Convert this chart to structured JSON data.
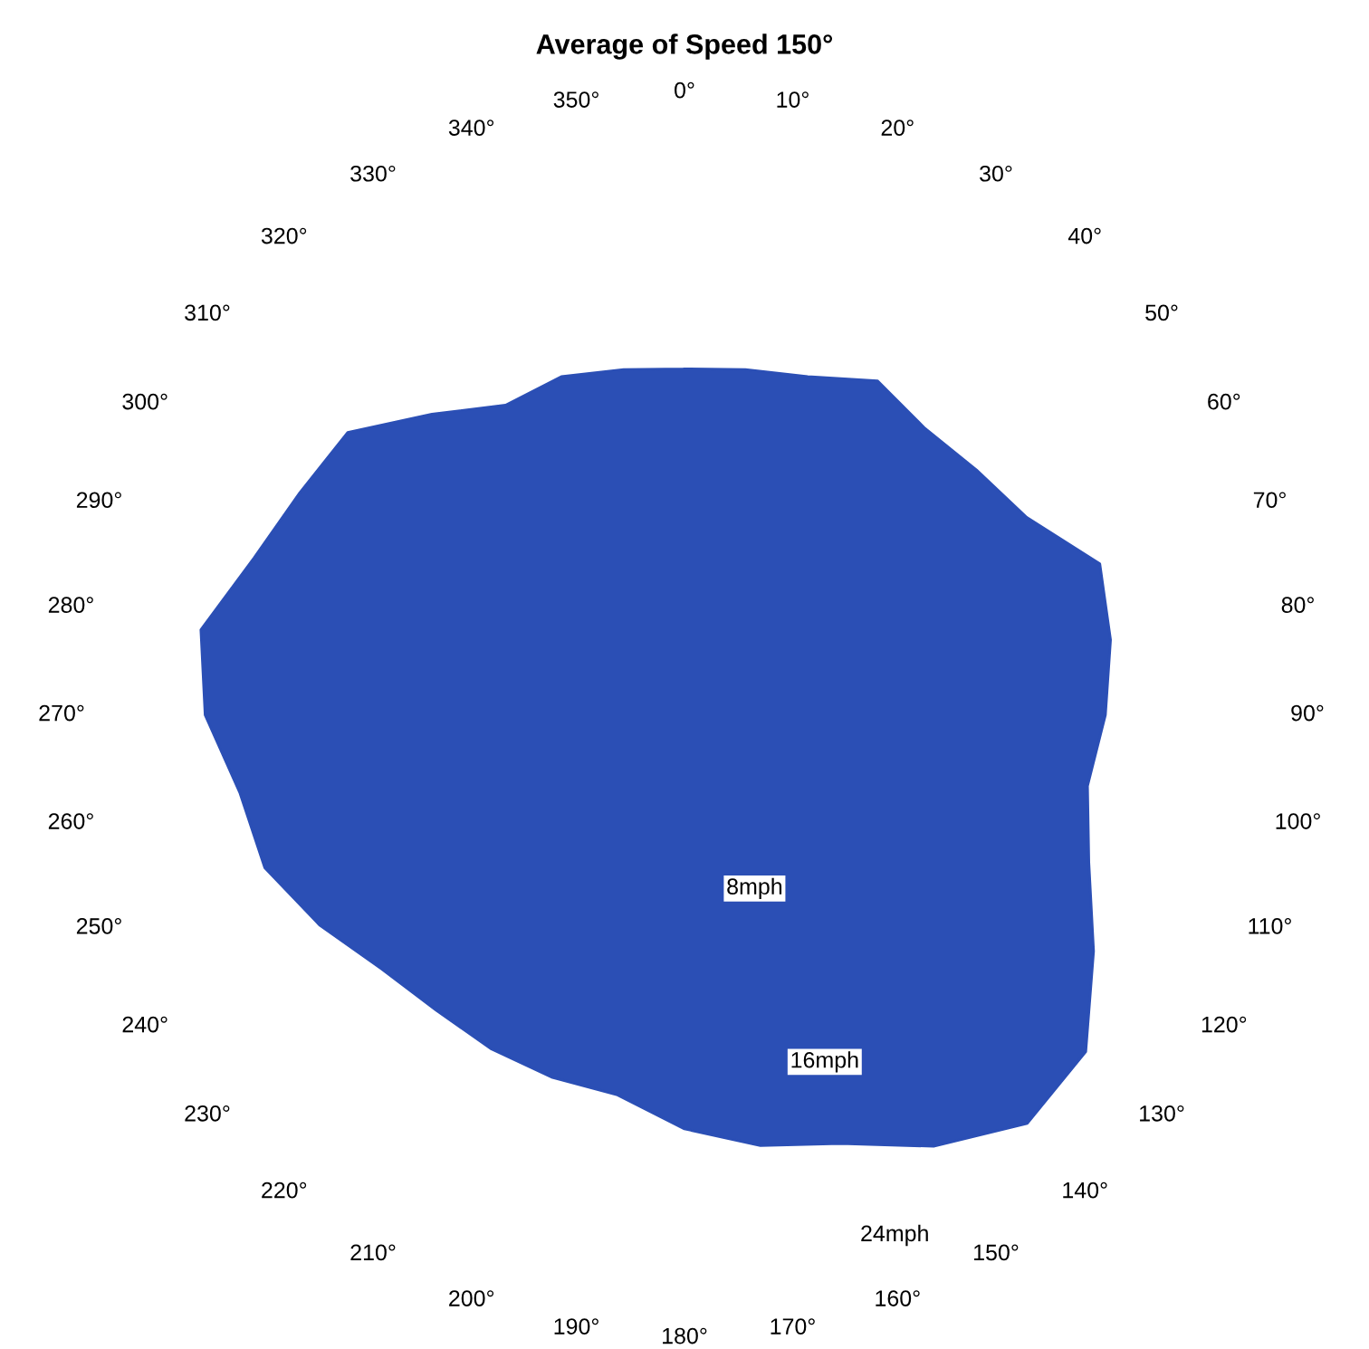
{
  "chart_data": {
    "type": "radar",
    "title": "Average of Speed 150°",
    "categories": [
      "0°",
      "10°",
      "20°",
      "30°",
      "40°",
      "50°",
      "60°",
      "70°",
      "80°",
      "90°",
      "100°",
      "110°",
      "120°",
      "130°",
      "140°",
      "150°",
      "160°",
      "170°",
      "180°",
      "190°",
      "200°",
      "210°",
      "220°",
      "230°",
      "240°",
      "250°",
      "260°",
      "270°",
      "280°",
      "290°",
      "300°",
      "310°",
      "320°",
      "330°",
      "340°",
      "350°"
    ],
    "series": [
      {
        "color": "#2b4fb5",
        "values": [
          14.8,
          15,
          15.4,
          16.5,
          16,
          16.3,
          16.9,
          18.9,
          18.5,
          18,
          17.5,
          18.4,
          20.2,
          22.4,
          22.8,
          21.3,
          19.5,
          18.7,
          17.7,
          16.5,
          16.5,
          16.5,
          16.5,
          16.9,
          18,
          19.1,
          19.3,
          20.5,
          21,
          19.6,
          19,
          18.8,
          16.8,
          15.3,
          15.4,
          15
        ]
      }
    ],
    "ylim": [
      0,
      24
    ],
    "yticks": [
      {
        "value": 8,
        "label": "8mph"
      },
      {
        "value": 16,
        "label": "16mph"
      },
      {
        "value": 24,
        "label": "24mph"
      }
    ],
    "grid": false,
    "marker": "none"
  }
}
